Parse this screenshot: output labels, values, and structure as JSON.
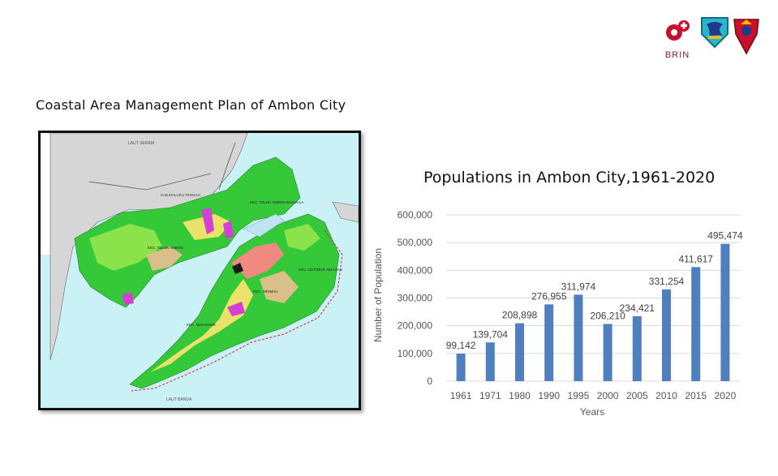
{
  "logos": {
    "brin_text": "BRIN",
    "icons": [
      "brin-logo-icon",
      "city-emblem-icon",
      "regional-shield-icon"
    ]
  },
  "map": {
    "title": "Coastal Area Management Plan of Ambon City",
    "labels": {
      "sea_north": "LAUT SERAM",
      "sea_south": "LAUT BANDA",
      "regency": "KAB.MALUKU TENGAH",
      "district_nw": "KEC. TELUK AMBON",
      "district_ne": "KEC. TELUK AMBON BAGUALA",
      "district_e": "KEC. LEITIMUR SELATAN",
      "district_center": "KEC. SIRIMAU",
      "district_sw": "KEC. NUSANIWE"
    },
    "colors": {
      "sea": "#c9f1f6",
      "land_other": "#d6d6d6",
      "green": "#35c93a",
      "light_green": "#8ae34a",
      "yellow": "#e9e36a",
      "tan": "#d9c08a",
      "magenta": "#d43fd6",
      "salmon": "#f08a80"
    }
  },
  "chart_data": {
    "type": "bar",
    "title": "Populations in Ambon City,1961-2020",
    "xlabel": "Years",
    "ylabel": "Number of Population",
    "categories": [
      "1961",
      "1971",
      "1980",
      "1990",
      "1995",
      "2000",
      "2005",
      "2010",
      "2015",
      "2020"
    ],
    "values": [
      99142,
      139704,
      208898,
      276955,
      311974,
      206210,
      234421,
      331254,
      411617,
      495474
    ],
    "data_labels": [
      "99,142",
      "139,704",
      "208,898",
      "276,955",
      "311,974",
      "206,210",
      "234,421",
      "331,254",
      "411,617",
      "495,474"
    ],
    "ylim": [
      0,
      600000
    ],
    "yticks": [
      "0",
      "100,000",
      "200,000",
      "300,000",
      "400,000",
      "500,000",
      "600,000"
    ],
    "grid": true,
    "legend": "none",
    "bar_color": "#4f7fbf"
  }
}
